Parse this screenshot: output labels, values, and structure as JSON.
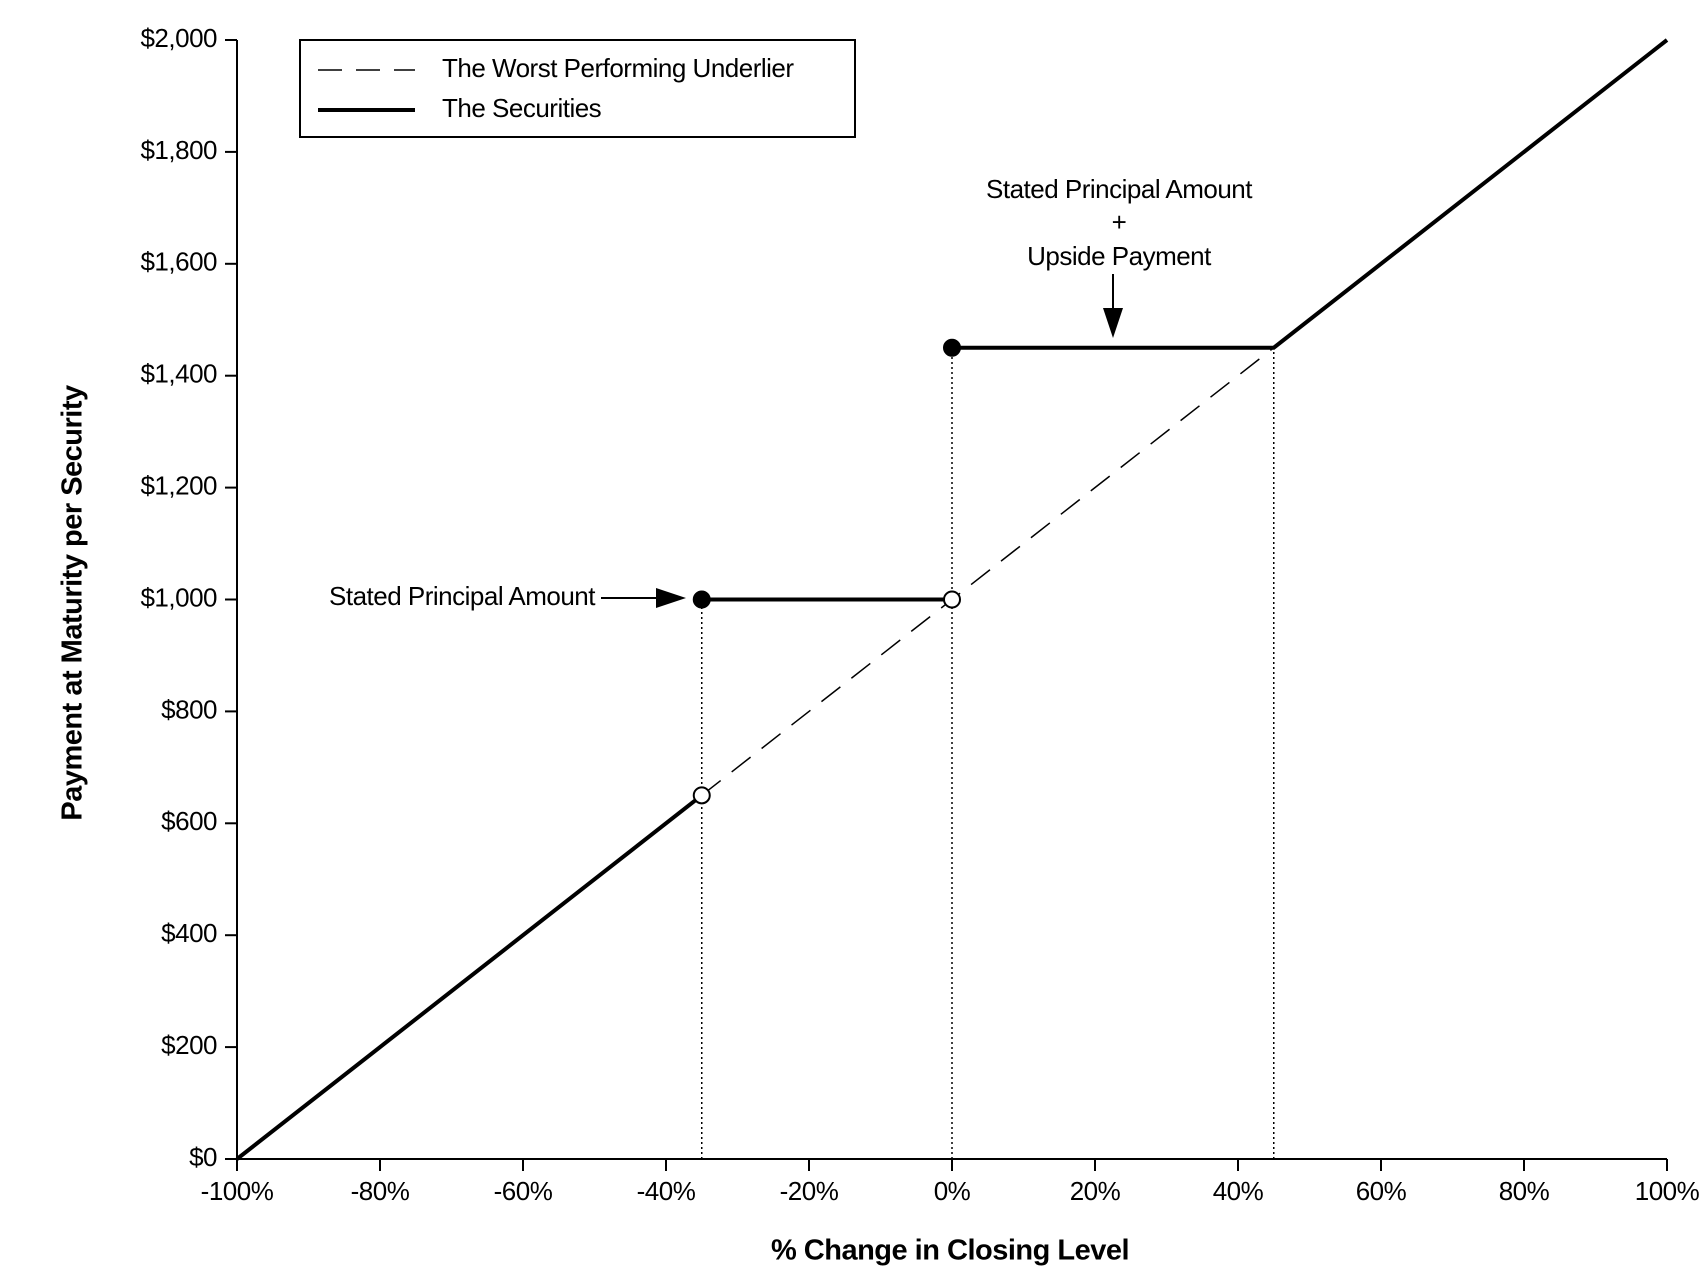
{
  "chart_data": {
    "type": "line",
    "xlabel": "% Change in Closing Level",
    "ylabel": "Payment at Maturity per Security",
    "xlim": [
      -100,
      100
    ],
    "ylim": [
      0,
      2000
    ],
    "xticks": [
      {
        "value": -100,
        "label": "-100%"
      },
      {
        "value": -80,
        "label": "-80%"
      },
      {
        "value": -60,
        "label": "-60%"
      },
      {
        "value": -40,
        "label": "-40%"
      },
      {
        "value": -20,
        "label": "-20%"
      },
      {
        "value": 0,
        "label": "0%"
      },
      {
        "value": 20,
        "label": "20%"
      },
      {
        "value": 40,
        "label": "40%"
      },
      {
        "value": 60,
        "label": "60%"
      },
      {
        "value": 80,
        "label": "80%"
      },
      {
        "value": 100,
        "label": "100%"
      }
    ],
    "yticks": [
      {
        "value": 0,
        "label": "$0"
      },
      {
        "value": 200,
        "label": "$200"
      },
      {
        "value": 400,
        "label": "$400"
      },
      {
        "value": 600,
        "label": "$600"
      },
      {
        "value": 800,
        "label": "$800"
      },
      {
        "value": 1000,
        "label": "$1,000"
      },
      {
        "value": 1200,
        "label": "$1,200"
      },
      {
        "value": 1400,
        "label": "$1,400"
      },
      {
        "value": 1600,
        "label": "$1,600"
      },
      {
        "value": 1800,
        "label": "$1,800"
      },
      {
        "value": 2000,
        "label": "$2,000"
      }
    ],
    "grid": false,
    "legend": "top-left",
    "series": [
      {
        "name": "The Worst Performing Underlier",
        "color": "#000000",
        "dashed": true,
        "width": 1.5,
        "x": [
          -35,
          45
        ],
        "values": [
          650,
          1450
        ]
      },
      {
        "name": "The Securities",
        "color": "#000000",
        "dashed": false,
        "width": 4,
        "x": [
          -100,
          -35,
          null,
          -35,
          0,
          null,
          0,
          45,
          100
        ],
        "values": [
          0,
          650,
          null,
          1000,
          1000,
          null,
          1450,
          1450,
          2000
        ]
      }
    ],
    "points": [
      {
        "x": -35,
        "y": 1000,
        "filled": true
      },
      {
        "x": -35,
        "y": 650,
        "filled": false
      },
      {
        "x": 0,
        "y": 1000,
        "filled": false
      },
      {
        "x": 0,
        "y": 1450,
        "filled": true
      }
    ],
    "reference_lines": [
      {
        "x": -35,
        "y": 1000
      },
      {
        "x": 0,
        "y": 1450
      },
      {
        "x": 45,
        "y": 1450
      }
    ],
    "annotations": [
      {
        "lines": [
          "Stated Principal Amount"
        ]
      },
      {
        "lines": [
          "Stated Principal Amount",
          "+",
          "Upside Payment"
        ]
      }
    ]
  }
}
